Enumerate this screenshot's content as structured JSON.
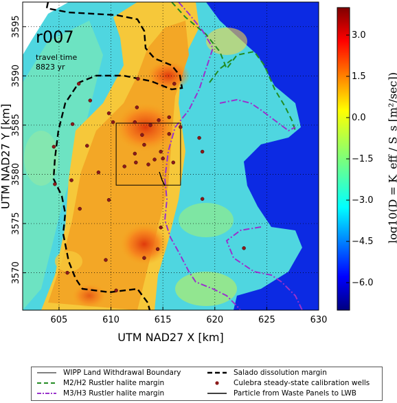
{
  "panel": {
    "run_id": "r007",
    "travel_time_label": "travel time",
    "travel_time_value": "8823 yr"
  },
  "axes": {
    "xlabel": "UTM NAD27 X [km]",
    "ylabel": "UTM NAD27 Y [km]",
    "xticks": [
      "605",
      "610",
      "615",
      "620",
      "625",
      "630"
    ],
    "yticks": [
      "3570",
      "3575",
      "3580",
      "3585",
      "3590",
      "3595"
    ],
    "xlim": [
      601.5,
      630
    ],
    "ylim": [
      3566.2,
      3597.5
    ]
  },
  "colorbar": {
    "label": "log10(D = K_eff / S_s [m²/sec])",
    "ticks": [
      "3.0",
      "1.5",
      "0.0",
      "−1.5",
      "−3.0",
      "−4.5",
      "−6.0"
    ],
    "range": [
      -7,
      4
    ],
    "colormap": "jet"
  },
  "colors": {
    "salado": "#000000",
    "m2h2": "#228b22",
    "m3h3": "#9932cc",
    "wells": "#8b1a1a",
    "particle": "#000000",
    "wipp": "#000000"
  },
  "legend": {
    "wipp": "WIPP Land Withdrawal Boundary",
    "m2h2": "M2/H2 Rustler halite margin",
    "m3h3": "M3/H3 Rustler halite margin",
    "salado": "Salado dissolution margin",
    "wells": "Culebra steady-state calibration wells",
    "particle": "Particle from Waste Panels to LWB"
  },
  "map_data": {
    "wipp_boundary": {
      "x": [
        610.5,
        616.7
      ],
      "y": [
        3578.9,
        3585.2
      ]
    },
    "wells": [
      [
        605.8,
        3570.0
      ],
      [
        613.2,
        3571.5
      ],
      [
        614.5,
        3572.4
      ],
      [
        607.0,
        3576.5
      ],
      [
        609.8,
        3577.4
      ],
      [
        604.6,
        3579.0
      ],
      [
        606.2,
        3579.4
      ],
      [
        608.8,
        3580.2
      ],
      [
        611.3,
        3580.8
      ],
      [
        612.4,
        3581.2
      ],
      [
        613.6,
        3581.0
      ],
      [
        614.2,
        3581.5
      ],
      [
        615.0,
        3581.6
      ],
      [
        616.0,
        3581.2
      ],
      [
        614.8,
        3582.3
      ],
      [
        613.2,
        3583.0
      ],
      [
        612.3,
        3582.1
      ],
      [
        613.0,
        3584.0
      ],
      [
        612.3,
        3585.3
      ],
      [
        613.8,
        3585.0
      ],
      [
        614.6,
        3585.5
      ],
      [
        615.6,
        3584.1
      ],
      [
        616.7,
        3584.8
      ],
      [
        618.5,
        3583.7
      ],
      [
        618.8,
        3582.3
      ],
      [
        606.3,
        3585.1
      ],
      [
        607.7,
        3582.9
      ],
      [
        604.5,
        3582.8
      ],
      [
        608.0,
        3587.5
      ],
      [
        612.5,
        3586.8
      ],
      [
        609.8,
        3586.2
      ],
      [
        610.2,
        3585.3
      ],
      [
        606.9,
        3589.2
      ],
      [
        612.6,
        3589.7
      ],
      [
        616.1,
        3589.2
      ],
      [
        610.5,
        3568.2
      ],
      [
        609.5,
        3571.3
      ],
      [
        614.8,
        3574.6
      ],
      [
        618.8,
        3577.5
      ],
      [
        622.8,
        3572.5
      ],
      [
        615.6,
        3585.8
      ]
    ]
  }
}
